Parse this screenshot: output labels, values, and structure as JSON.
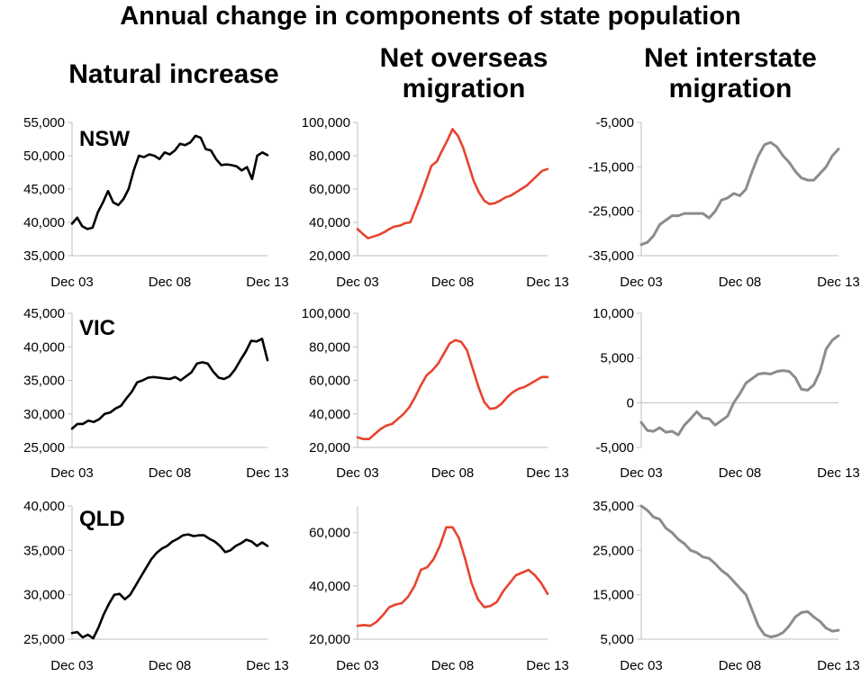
{
  "title": "Annual change in components of state population",
  "column_headers": [
    "Natural increase",
    "Net overseas migration",
    "Net interstate migration"
  ],
  "colors": {
    "natural": "#000000",
    "overseas": "#e8432f",
    "interstate": "#8c8c8c",
    "axis": "#bfbfbf"
  },
  "x_labels": [
    "Dec 03",
    "Dec 08",
    "Dec 13"
  ],
  "chart_data": [
    {
      "type": "line",
      "state": "NSW",
      "component": "Natural increase",
      "ylim": [
        35000,
        55000
      ],
      "yticks": [
        "55,000",
        "50,000",
        "45,000",
        "40,000",
        "35,000"
      ],
      "x_labels": [
        "Dec 03",
        "Dec 08",
        "Dec 13"
      ],
      "values": [
        39800,
        40700,
        39400,
        39000,
        39200,
        41500,
        43000,
        44700,
        43000,
        42600,
        43500,
        45000,
        47800,
        50000,
        49800,
        50200,
        50000,
        49500,
        50500,
        50200,
        50800,
        51800,
        51600,
        52000,
        53000,
        52700,
        51000,
        50800,
        49500,
        48600,
        48700,
        48600,
        48400,
        47800,
        48300,
        46500,
        50000,
        50500,
        50100
      ]
    },
    {
      "type": "line",
      "state": "NSW",
      "component": "Net overseas migration",
      "ylim": [
        20000,
        100000
      ],
      "yticks": [
        "100,000",
        "80,000",
        "60,000",
        "40,000",
        "20,000"
      ],
      "x_labels": [
        "Dec 03",
        "Dec 08",
        "Dec 13"
      ],
      "values": [
        36000,
        33000,
        30500,
        31500,
        32500,
        34000,
        36000,
        37500,
        38000,
        39500,
        40000,
        48000,
        56000,
        65000,
        74000,
        76500,
        83000,
        89000,
        96000,
        92000,
        85000,
        75000,
        65000,
        58000,
        53000,
        51000,
        51500,
        53000,
        55000,
        56000,
        58000,
        60000,
        62000,
        65000,
        68000,
        71000,
        72000
      ]
    },
    {
      "type": "line",
      "state": "NSW",
      "component": "Net interstate migration",
      "ylim": [
        -35000,
        -5000
      ],
      "yticks": [
        "-5,000",
        "-15,000",
        "-25,000",
        "-35,000"
      ],
      "x_labels": [
        "Dec 03",
        "Dec 08",
        "Dec 13"
      ],
      "values": [
        -32500,
        -32000,
        -30500,
        -28000,
        -27000,
        -26000,
        -26000,
        -25500,
        -25500,
        -25500,
        -25500,
        -26500,
        -25000,
        -22500,
        -22000,
        -21000,
        -21500,
        -20000,
        -16000,
        -12500,
        -10000,
        -9500,
        -10500,
        -12500,
        -14000,
        -16000,
        -17500,
        -18000,
        -18000,
        -16500,
        -15000,
        -12500,
        -11000
      ]
    },
    {
      "type": "line",
      "state": "VIC",
      "component": "Natural increase",
      "ylim": [
        25000,
        45000
      ],
      "yticks": [
        "45,000",
        "40,000",
        "35,000",
        "30,000",
        "25,000"
      ],
      "x_labels": [
        "Dec 03",
        "Dec 08",
        "Dec 13"
      ],
      "values": [
        27800,
        28500,
        28500,
        29000,
        28800,
        29200,
        30000,
        30200,
        30800,
        31200,
        32300,
        33300,
        34700,
        35000,
        35400,
        35500,
        35400,
        35300,
        35200,
        35500,
        35000,
        35600,
        36200,
        37500,
        37700,
        37500,
        36300,
        35400,
        35200,
        35600,
        36600,
        38000,
        39300,
        40900,
        40800,
        41200,
        38000
      ]
    },
    {
      "type": "line",
      "state": "VIC",
      "component": "Net overseas migration",
      "ylim": [
        20000,
        100000
      ],
      "yticks": [
        "100,000",
        "80,000",
        "60,000",
        "40,000",
        "20,000"
      ],
      "x_labels": [
        "Dec 03",
        "Dec 08",
        "Dec 13"
      ],
      "values": [
        26000,
        25000,
        25000,
        28000,
        31000,
        33000,
        34000,
        37000,
        40000,
        44000,
        50000,
        57000,
        63000,
        66000,
        70000,
        76000,
        82000,
        84000,
        83000,
        78000,
        67000,
        56000,
        47000,
        43000,
        43500,
        46000,
        50000,
        53000,
        55000,
        56000,
        58000,
        60000,
        62000,
        62000
      ]
    },
    {
      "type": "line",
      "state": "VIC",
      "component": "Net interstate migration",
      "ylim": [
        -5000,
        10000
      ],
      "yticks": [
        "10,000",
        "5,000",
        "0",
        "-5,000"
      ],
      "x_labels": [
        "Dec 03",
        "Dec 08",
        "Dec 13"
      ],
      "values": [
        -2200,
        -3100,
        -3200,
        -2800,
        -3300,
        -3200,
        -3600,
        -2500,
        -1800,
        -1000,
        -1700,
        -1800,
        -2500,
        -2000,
        -1500,
        0,
        1000,
        2200,
        2700,
        3200,
        3300,
        3200,
        3500,
        3600,
        3500,
        2800,
        1500,
        1400,
        2000,
        3500,
        6000,
        7000,
        7500
      ]
    },
    {
      "type": "line",
      "state": "QLD",
      "component": "Natural increase",
      "ylim": [
        25000,
        40000
      ],
      "yticks": [
        "40,000",
        "35,000",
        "30,000",
        "25,000"
      ],
      "x_labels": [
        "Dec 03",
        "Dec 08",
        "Dec 13"
      ],
      "values": [
        25700,
        25800,
        25200,
        25500,
        25100,
        26300,
        27800,
        29000,
        30000,
        30100,
        29500,
        30000,
        31000,
        32000,
        33000,
        34000,
        34700,
        35200,
        35500,
        36000,
        36300,
        36700,
        36800,
        36600,
        36700,
        36700,
        36300,
        36000,
        35500,
        34800,
        35000,
        35500,
        35800,
        36200,
        36000,
        35500,
        35900,
        35500
      ]
    },
    {
      "type": "line",
      "state": "QLD",
      "component": "Net overseas migration",
      "ylim": [
        20000,
        70000
      ],
      "yticks": [
        "60,000",
        "40,000",
        "20,000"
      ],
      "x_labels": [
        "Dec 03",
        "Dec 08",
        "Dec 13"
      ],
      "values": [
        25000,
        25300,
        25000,
        26500,
        29000,
        32000,
        33000,
        33500,
        36000,
        40000,
        46000,
        47000,
        50000,
        55000,
        62000,
        62000,
        58000,
        50000,
        41000,
        35000,
        32000,
        32500,
        34000,
        38000,
        41000,
        44000,
        45000,
        46000,
        44000,
        41000,
        37000
      ]
    },
    {
      "type": "line",
      "state": "QLD",
      "component": "Net interstate migration",
      "ylim": [
        5000,
        35000
      ],
      "yticks": [
        "35,000",
        "25,000",
        "15,000",
        "5,000"
      ],
      "x_labels": [
        "Dec 03",
        "Dec 08",
        "Dec 13"
      ],
      "values": [
        35000,
        34000,
        32500,
        32000,
        30000,
        29000,
        27500,
        26500,
        25000,
        24500,
        23500,
        23200,
        22000,
        20500,
        19500,
        18000,
        16500,
        15000,
        11500,
        8000,
        6000,
        5500,
        5800,
        6500,
        8000,
        10000,
        11000,
        11200,
        10000,
        9000,
        7500,
        6800,
        7000
      ]
    }
  ]
}
